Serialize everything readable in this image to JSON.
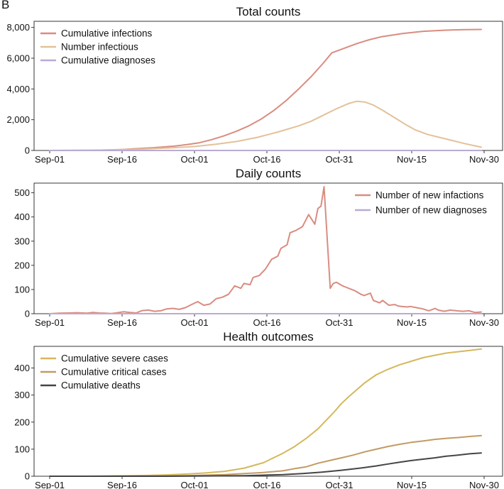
{
  "panel_label": "B",
  "chart_data": [
    {
      "type": "line",
      "title": "Total counts",
      "xlabel": "",
      "ylabel": "",
      "x_start": "Sep-01",
      "x_ticks": [
        "Sep-01",
        "Sep-16",
        "Oct-01",
        "Oct-16",
        "Oct-31",
        "Nov-15",
        "Nov-30"
      ],
      "ylim": [
        0,
        8400
      ],
      "y_ticks": [
        0,
        2000,
        4000,
        6000,
        8000
      ],
      "y_tick_labels": [
        "0",
        "2,000",
        "4,000",
        "6,000",
        "8,000"
      ],
      "legend": "top-left",
      "grid": false,
      "series": [
        {
          "name": "Cumulative infections",
          "color": "#d98c80",
          "points": [
            [
              0,
              0
            ],
            [
              5,
              5
            ],
            [
              10,
              15
            ],
            [
              15,
              40
            ],
            [
              18,
              70
            ],
            [
              20,
              100
            ],
            [
              25,
              180
            ],
            [
              30,
              280
            ],
            [
              33,
              380
            ],
            [
              36,
              500
            ],
            [
              39,
              700
            ],
            [
              42,
              950
            ],
            [
              45,
              1250
            ],
            [
              48,
              1600
            ],
            [
              51,
              2050
            ],
            [
              54,
              2600
            ],
            [
              57,
              3250
            ],
            [
              60,
              4000
            ],
            [
              63,
              4800
            ],
            [
              66,
              5700
            ],
            [
              68,
              6350
            ],
            [
              71,
              6650
            ],
            [
              74,
              6950
            ],
            [
              77,
              7200
            ],
            [
              80,
              7400
            ],
            [
              85,
              7600
            ],
            [
              90,
              7750
            ],
            [
              95,
              7820
            ],
            [
              100,
              7860
            ],
            [
              104,
              7870
            ]
          ]
        },
        {
          "name": "Number infectious",
          "color": "#e3c19a",
          "points": [
            [
              0,
              0
            ],
            [
              10,
              10
            ],
            [
              15,
              30
            ],
            [
              20,
              70
            ],
            [
              25,
              120
            ],
            [
              30,
              180
            ],
            [
              35,
              260
            ],
            [
              40,
              400
            ],
            [
              45,
              580
            ],
            [
              50,
              850
            ],
            [
              55,
              1200
            ],
            [
              60,
              1600
            ],
            [
              63,
              1900
            ],
            [
              66,
              2300
            ],
            [
              69,
              2700
            ],
            [
              72,
              3050
            ],
            [
              74,
              3200
            ],
            [
              76,
              3150
            ],
            [
              78,
              2950
            ],
            [
              80,
              2650
            ],
            [
              83,
              2150
            ],
            [
              86,
              1650
            ],
            [
              88,
              1350
            ],
            [
              91,
              1050
            ],
            [
              95,
              780
            ],
            [
              100,
              450
            ],
            [
              104,
              210
            ]
          ]
        },
        {
          "name": "Cumulative diagnoses",
          "color": "#b9abd4",
          "points": [
            [
              0,
              0
            ],
            [
              104,
              0
            ]
          ]
        }
      ]
    },
    {
      "type": "line",
      "title": "Daily counts",
      "xlabel": "",
      "ylabel": "",
      "x_start": "Sep-01",
      "x_ticks": [
        "Sep-01",
        "Sep-16",
        "Oct-01",
        "Oct-16",
        "Oct-31",
        "Nov-15",
        "Nov-30"
      ],
      "ylim": [
        0,
        540
      ],
      "y_ticks": [
        0,
        100,
        200,
        300,
        400,
        500
      ],
      "y_tick_labels": [
        "0",
        "100",
        "200",
        "300",
        "400",
        "500"
      ],
      "legend": "top-right",
      "grid": false,
      "series": [
        {
          "name": "Number of new infactions",
          "color": "#d98c80",
          "points": [
            [
              0,
              0
            ],
            [
              3,
              2
            ],
            [
              6,
              3
            ],
            [
              9,
              4
            ],
            [
              12,
              2
            ],
            [
              14,
              5
            ],
            [
              16,
              3
            ],
            [
              18,
              2
            ],
            [
              20,
              1
            ],
            [
              22,
              4
            ],
            [
              24,
              8
            ],
            [
              26,
              5
            ],
            [
              28,
              3
            ],
            [
              30,
              13
            ],
            [
              32,
              15
            ],
            [
              34,
              10
            ],
            [
              36,
              12
            ],
            [
              38,
              20
            ],
            [
              40,
              22
            ],
            [
              42,
              18
            ],
            [
              44,
              25
            ],
            [
              46,
              38
            ],
            [
              48,
              50
            ],
            [
              50,
              35
            ],
            [
              52,
              40
            ],
            [
              54,
              62
            ],
            [
              56,
              68
            ],
            [
              58,
              80
            ],
            [
              60,
              115
            ],
            [
              62,
              105
            ],
            [
              63,
              125
            ],
            [
              65,
              120
            ],
            [
              66,
              150
            ],
            [
              68,
              158
            ],
            [
              70,
              185
            ],
            [
              72,
              225
            ],
            [
              74,
              238
            ],
            [
              75,
              270
            ],
            [
              77,
              285
            ],
            [
              78,
              335
            ],
            [
              80,
              345
            ],
            [
              82,
              360
            ],
            [
              84,
              410
            ],
            [
              86,
              370
            ],
            [
              87,
              435
            ],
            [
              88,
              445
            ],
            [
              89,
              525
            ],
            [
              91,
              105
            ],
            [
              92,
              125
            ],
            [
              93,
              130
            ],
            [
              95,
              115
            ],
            [
              96,
              110
            ],
            [
              98,
              100
            ],
            [
              99,
              95
            ],
            [
              101,
              80
            ],
            [
              102,
              75
            ],
            [
              104,
              85
            ],
            [
              105,
              55
            ],
            [
              107,
              45
            ],
            [
              108,
              55
            ],
            [
              110,
              35
            ],
            [
              112,
              38
            ],
            [
              113,
              32
            ],
            [
              114,
              30
            ],
            [
              116,
              28
            ],
            [
              117,
              30
            ],
            [
              119,
              25
            ],
            [
              121,
              20
            ],
            [
              123,
              12
            ],
            [
              125,
              22
            ],
            [
              126,
              15
            ],
            [
              128,
              10
            ],
            [
              130,
              15
            ],
            [
              132,
              12
            ],
            [
              134,
              10
            ],
            [
              136,
              12
            ],
            [
              138,
              5
            ],
            [
              140,
              7
            ]
          ]
        },
        {
          "name": "Number of new diagnoses",
          "color": "#b9abd4",
          "points": [
            [
              0,
              0
            ],
            [
              140,
              0
            ]
          ]
        }
      ]
    },
    {
      "type": "line",
      "title": "Health outcomes",
      "xlabel": "",
      "ylabel": "",
      "x_start": "Sep-01",
      "x_ticks": [
        "Sep-01",
        "Sep-16",
        "Oct-01",
        "Oct-16",
        "Oct-31",
        "Nov-15",
        "Nov-30"
      ],
      "ylim": [
        0,
        480
      ],
      "y_ticks": [
        0,
        100,
        200,
        300,
        400
      ],
      "y_tick_labels": [
        "0",
        "100",
        "200",
        "300",
        "400"
      ],
      "legend": "top-left",
      "grid": false,
      "series": [
        {
          "name": "Cumulative severe cases",
          "color": "#d4b85c",
          "points": [
            [
              0,
              0
            ],
            [
              10,
              0
            ],
            [
              15,
              1
            ],
            [
              20,
              2
            ],
            [
              25,
              3
            ],
            [
              30,
              5
            ],
            [
              35,
              8
            ],
            [
              40,
              12
            ],
            [
              45,
              18
            ],
            [
              50,
              30
            ],
            [
              55,
              50
            ],
            [
              60,
              85
            ],
            [
              63,
              110
            ],
            [
              66,
              140
            ],
            [
              69,
              175
            ],
            [
              71,
              205
            ],
            [
              73,
              235
            ],
            [
              75,
              268
            ],
            [
              77,
              295
            ],
            [
              79,
              320
            ],
            [
              81,
              345
            ],
            [
              84,
              375
            ],
            [
              87,
              395
            ],
            [
              90,
              412
            ],
            [
              93,
              425
            ],
            [
              96,
              438
            ],
            [
              99,
              447
            ],
            [
              102,
              455
            ],
            [
              105,
              460
            ],
            [
              108,
              465
            ],
            [
              111,
              470
            ]
          ]
        },
        {
          "name": "Cumulative critical cases",
          "color": "#c29b62",
          "points": [
            [
              0,
              0
            ],
            [
              20,
              0
            ],
            [
              30,
              1
            ],
            [
              35,
              2
            ],
            [
              40,
              4
            ],
            [
              45,
              6
            ],
            [
              50,
              10
            ],
            [
              53,
              12
            ],
            [
              55,
              14
            ],
            [
              60,
              20
            ],
            [
              63,
              28
            ],
            [
              66,
              35
            ],
            [
              69,
              48
            ],
            [
              72,
              58
            ],
            [
              75,
              68
            ],
            [
              78,
              78
            ],
            [
              81,
              90
            ],
            [
              84,
              100
            ],
            [
              87,
              110
            ],
            [
              90,
              118
            ],
            [
              93,
              125
            ],
            [
              96,
              130
            ],
            [
              99,
              136
            ],
            [
              102,
              140
            ],
            [
              105,
              143
            ],
            [
              108,
              147
            ],
            [
              111,
              150
            ]
          ]
        },
        {
          "name": "Cumulative deaths",
          "color": "#454545",
          "points": [
            [
              0,
              0
            ],
            [
              30,
              0
            ],
            [
              40,
              1
            ],
            [
              50,
              2
            ],
            [
              55,
              4
            ],
            [
              60,
              6
            ],
            [
              65,
              10
            ],
            [
              70,
              15
            ],
            [
              75,
              22
            ],
            [
              78,
              27
            ],
            [
              81,
              32
            ],
            [
              84,
              38
            ],
            [
              87,
              45
            ],
            [
              90,
              52
            ],
            [
              93,
              58
            ],
            [
              96,
              63
            ],
            [
              99,
              68
            ],
            [
              102,
              74
            ],
            [
              105,
              78
            ],
            [
              108,
              83
            ],
            [
              111,
              86
            ]
          ]
        }
      ]
    }
  ]
}
